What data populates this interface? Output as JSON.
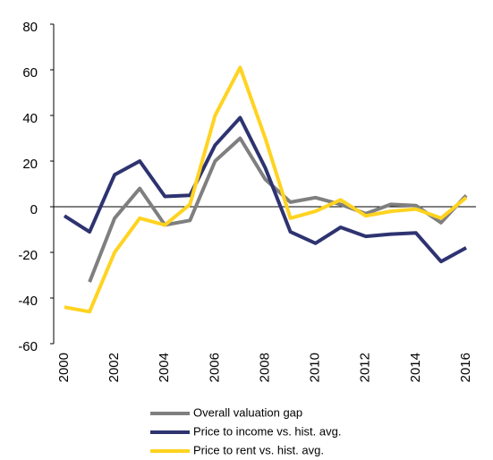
{
  "chart_data": {
    "type": "line",
    "x": [
      2000,
      2001,
      2002,
      2003,
      2004,
      2005,
      2006,
      2007,
      2008,
      2009,
      2010,
      2011,
      2012,
      2013,
      2014,
      2015,
      2016
    ],
    "xlim": [
      2000,
      2016
    ],
    "xticks": [
      2000,
      2002,
      2004,
      2006,
      2008,
      2010,
      2012,
      2014,
      2016
    ],
    "ylim": [
      -60,
      80
    ],
    "yticks": [
      -60,
      -40,
      -20,
      0,
      20,
      40,
      60,
      80
    ],
    "legend": "bottom",
    "series": [
      {
        "name": "Overall valuation gap",
        "color": "#7f7f7f",
        "values": [
          null,
          -33,
          -5,
          8,
          -8,
          -6,
          20,
          30,
          12,
          2,
          4,
          1,
          -3,
          1,
          0.5,
          -7,
          5
        ]
      },
      {
        "name": "Price to income vs. hist. avg.",
        "color": "#2e3370",
        "values": [
          -4,
          -11,
          14,
          20,
          4.5,
          5,
          27,
          39,
          17,
          -11,
          -16,
          -9,
          -13,
          -12,
          -11.5,
          -24,
          -18
        ]
      },
      {
        "name": "Price to rent vs. hist. avg.",
        "color": "#ffd320",
        "values": [
          -44,
          -46,
          -20,
          -5,
          -8,
          1,
          40,
          61,
          30,
          -5,
          -2,
          3,
          -4,
          -2,
          -1,
          -5,
          4
        ]
      }
    ]
  }
}
